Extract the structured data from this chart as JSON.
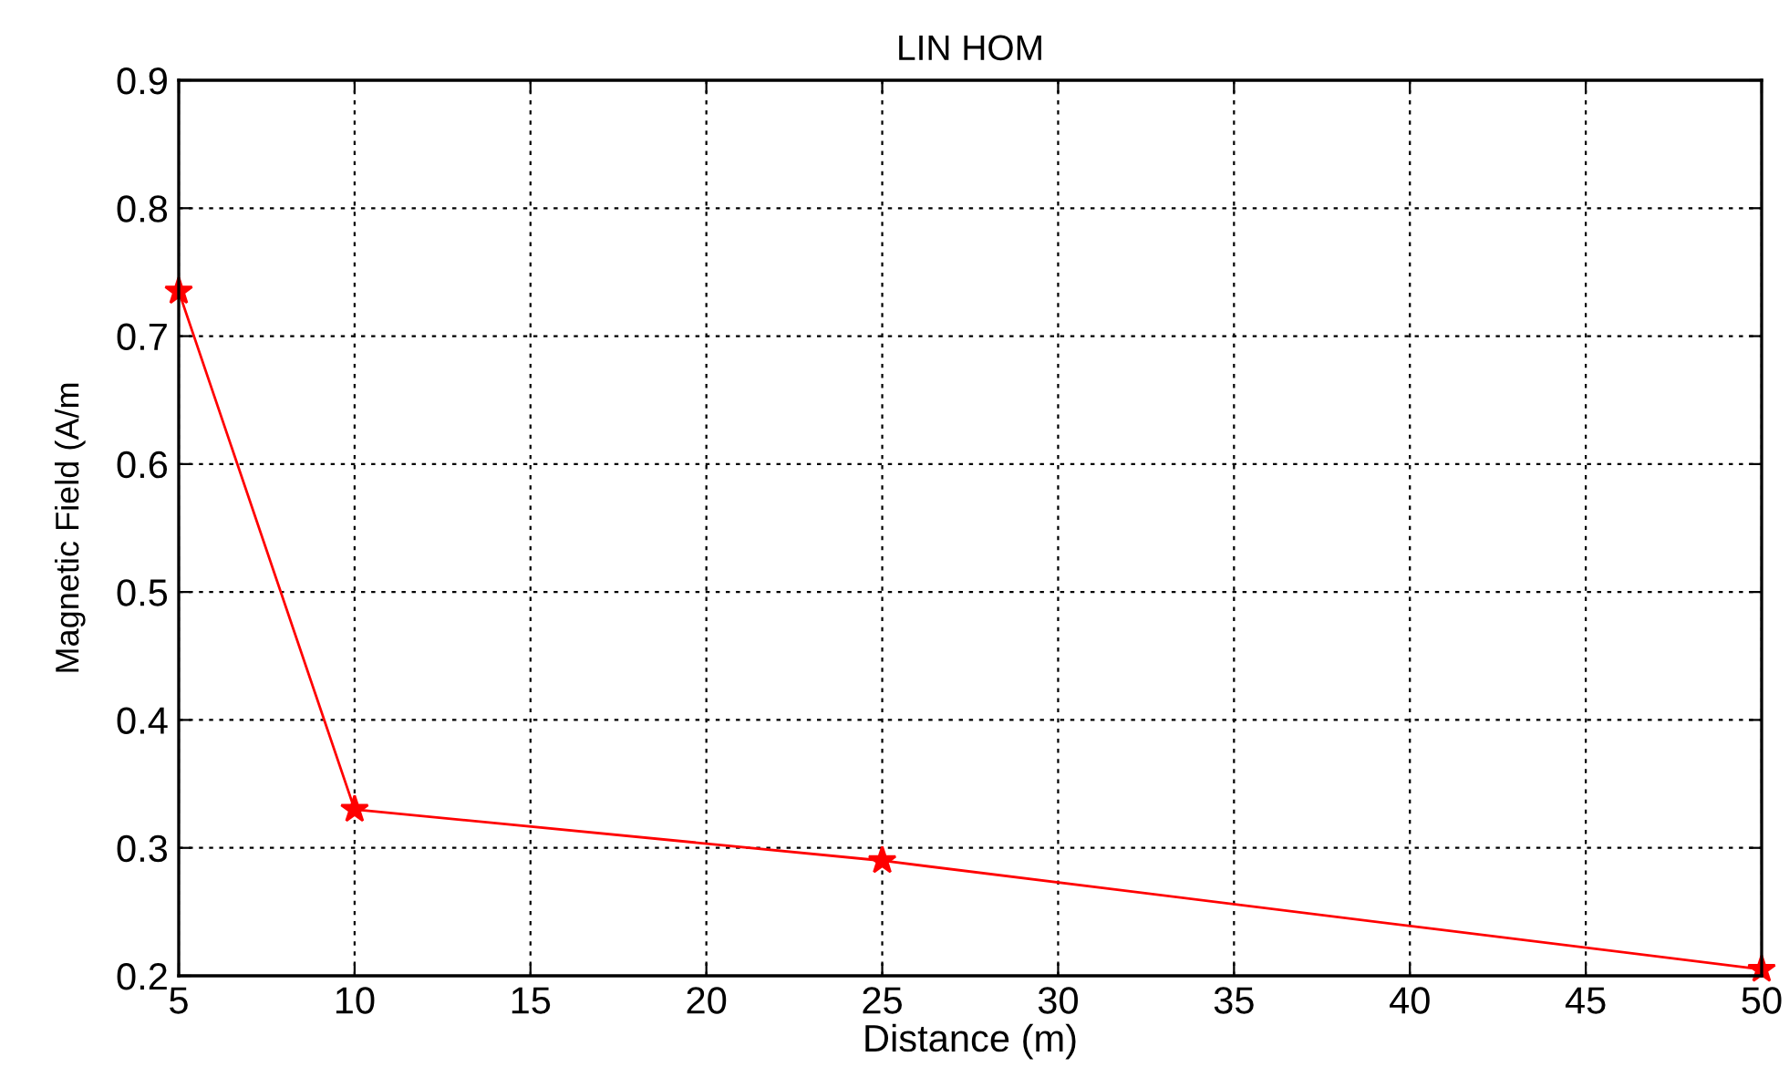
{
  "chart_data": {
    "type": "line",
    "title": "LIN HOM",
    "xlabel": "Distance (m)",
    "ylabel": "Magnetic Field (A/m",
    "x": [
      5,
      10,
      25,
      50
    ],
    "series": [
      {
        "color": "#ff0000",
        "values": [
          0.735,
          0.33,
          0.29,
          0.205
        ]
      }
    ],
    "xlim": [
      5,
      50
    ],
    "xticks": [
      5,
      10,
      15,
      20,
      25,
      30,
      35,
      40,
      45,
      50
    ],
    "ylim": [
      0.2,
      0.9
    ],
    "yticks": [
      0.2,
      0.3,
      0.4,
      0.5,
      0.6,
      0.7,
      0.8,
      0.9
    ],
    "grid": true,
    "marker": "star",
    "line_style": "solid"
  }
}
